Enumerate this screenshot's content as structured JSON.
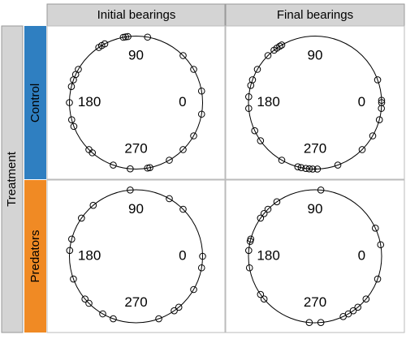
{
  "facets": {
    "columns": [
      "Initial bearings",
      "Final bearings"
    ],
    "rows": [
      "Control",
      "Predators"
    ],
    "row_title": "Treatment"
  },
  "chart_data": [
    {
      "type": "circular",
      "values": [
        99,
        97,
        101,
        80,
        118,
        121,
        124,
        150,
        155,
        160,
        166,
        180,
        195,
        201,
        225,
        229,
        250,
        265,
        280,
        282,
        300,
        315,
        330,
        350,
        10,
        30,
        45
      ],
      "ticks": [
        0,
        90,
        180,
        270
      ]
    },
    {
      "type": "circular",
      "values": [
        120,
        122,
        125,
        128,
        135,
        150,
        160,
        165,
        175,
        185,
        205,
        215,
        240,
        255,
        258,
        262,
        265,
        268,
        272,
        290,
        315,
        330,
        345,
        355,
        0,
        2,
        20
      ],
      "ticks": [
        0,
        90,
        180,
        270
      ]
    },
    {
      "type": "circular",
      "values": [
        95,
        60,
        45,
        130,
        145,
        165,
        175,
        200,
        220,
        225,
        240,
        250,
        290,
        305,
        310,
        330,
        350,
        0
      ],
      "ticks": [
        0,
        90,
        180,
        270
      ]
    },
    {
      "type": "circular",
      "values": [
        85,
        125,
        135,
        140,
        145,
        165,
        167,
        175,
        190,
        215,
        220,
        265,
        275,
        295,
        300,
        305,
        310,
        320,
        340,
        10,
        25
      ],
      "ticks": [
        0,
        90,
        180,
        270
      ]
    }
  ]
}
